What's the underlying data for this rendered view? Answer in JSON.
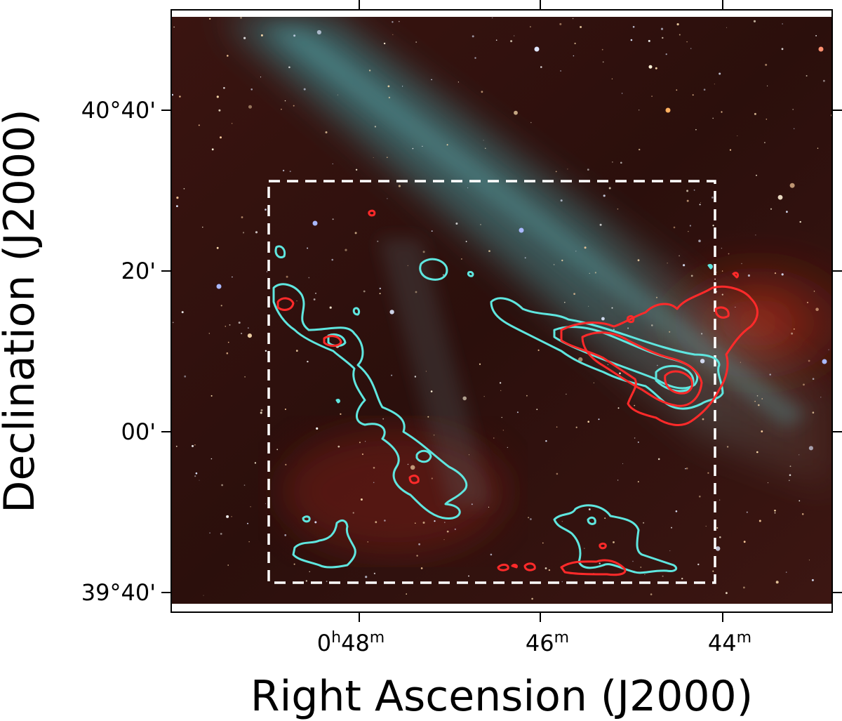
{
  "axes": {
    "xlabel": "Right Ascension (J2000)",
    "ylabel": "Declination (J2000)",
    "x_ticks": [
      {
        "prefix": "0",
        "h": "h",
        "value": "48",
        "unit": "m"
      },
      {
        "prefix": "",
        "h": "",
        "value": "46",
        "unit": "m"
      },
      {
        "prefix": "",
        "h": "",
        "value": "44",
        "unit": "m"
      }
    ],
    "y_ticks": [
      "40°40'",
      "20'",
      "00'",
      "39°40'"
    ]
  },
  "colors": {
    "background_sky": "#2a0f0d",
    "contour_cyan": "#5fe6df",
    "contour_red": "#ff2a2a",
    "dashed_box": "#ffffff",
    "stream_teal": "#3f8c93"
  }
}
